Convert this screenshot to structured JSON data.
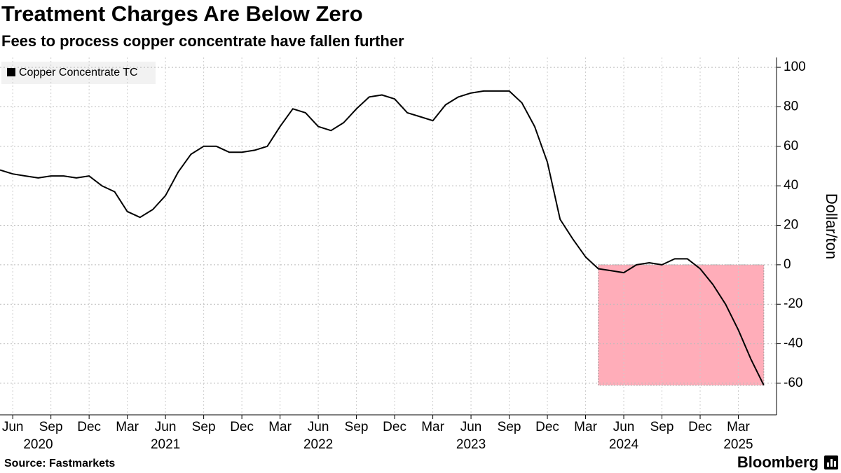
{
  "chart_data": {
    "type": "line",
    "title": "Treatment Charges Are Below Zero",
    "subtitle": "Fees to process copper concentrate have fallen further",
    "y_label": "Dollar/ton",
    "source": "Source: Fastmarkets",
    "brand": "Bloomberg",
    "legend": "top-left",
    "grid": true,
    "x": [
      "2020-05",
      "2020-06",
      "2020-07",
      "2020-08",
      "2020-09",
      "2020-10",
      "2020-11",
      "2020-12",
      "2021-01",
      "2021-02",
      "2021-03",
      "2021-04",
      "2021-05",
      "2021-06",
      "2021-07",
      "2021-08",
      "2021-09",
      "2021-10",
      "2021-11",
      "2021-12",
      "2022-01",
      "2022-02",
      "2022-03",
      "2022-04",
      "2022-05",
      "2022-06",
      "2022-07",
      "2022-08",
      "2022-09",
      "2022-10",
      "2022-11",
      "2022-12",
      "2023-01",
      "2023-02",
      "2023-03",
      "2023-04",
      "2023-05",
      "2023-06",
      "2023-07",
      "2023-08",
      "2023-09",
      "2023-10",
      "2023-11",
      "2023-12",
      "2024-01",
      "2024-02",
      "2024-03",
      "2024-04",
      "2024-05",
      "2024-06",
      "2024-07",
      "2024-08",
      "2024-09",
      "2024-10",
      "2024-11",
      "2024-12",
      "2025-01",
      "2025-02",
      "2025-03",
      "2025-04",
      "2025-05"
    ],
    "series": [
      {
        "name": "Copper Concentrate TC",
        "color": "#000000",
        "values": [
          48,
          46,
          45,
          44,
          45,
          45,
          44,
          45,
          40,
          37,
          27,
          24,
          28,
          35,
          47,
          56,
          60,
          60,
          57,
          57,
          58,
          60,
          70,
          79,
          77,
          70,
          68,
          72,
          79,
          85,
          86,
          84,
          77,
          75,
          73,
          81,
          85,
          87,
          88,
          88,
          88,
          82,
          70,
          52,
          23,
          13,
          4,
          -2,
          -3,
          -4,
          0,
          1,
          0,
          3,
          3,
          -2,
          -10,
          -20,
          -33,
          -48,
          -61
        ]
      }
    ],
    "highlight": {
      "x": [
        "2024-04",
        "2025-05"
      ],
      "y": [
        0,
        -61
      ],
      "color": "#ffadb9"
    },
    "xlim": [
      "2020-05",
      "2025-06"
    ],
    "ylim": [
      -76,
      105
    ],
    "yticks": [
      -60,
      -40,
      -20,
      0,
      20,
      40,
      60,
      80,
      100
    ],
    "xticks": [
      {
        "value": "2020-06",
        "label": "Jun"
      },
      {
        "value": "2020-09",
        "label": "Sep"
      },
      {
        "value": "2020-12",
        "label": "Dec"
      },
      {
        "value": "2021-03",
        "label": "Mar"
      },
      {
        "value": "2021-06",
        "label": "Jun"
      },
      {
        "value": "2021-09",
        "label": "Sep"
      },
      {
        "value": "2021-12",
        "label": "Dec"
      },
      {
        "value": "2022-03",
        "label": "Mar"
      },
      {
        "value": "2022-06",
        "label": "Jun"
      },
      {
        "value": "2022-09",
        "label": "Sep"
      },
      {
        "value": "2022-12",
        "label": "Dec"
      },
      {
        "value": "2023-03",
        "label": "Mar"
      },
      {
        "value": "2023-06",
        "label": "Jun"
      },
      {
        "value": "2023-09",
        "label": "Sep"
      },
      {
        "value": "2023-12",
        "label": "Dec"
      },
      {
        "value": "2024-03",
        "label": "Mar"
      },
      {
        "value": "2024-06",
        "label": "Jun"
      },
      {
        "value": "2024-09",
        "label": "Sep"
      },
      {
        "value": "2024-12",
        "label": "Dec"
      },
      {
        "value": "2025-03",
        "label": "Mar"
      }
    ],
    "year_ticks": [
      {
        "value": "2020-08",
        "label": "2020"
      },
      {
        "value": "2021-06",
        "label": "2021"
      },
      {
        "value": "2022-06",
        "label": "2022"
      },
      {
        "value": "2023-06",
        "label": "2023"
      },
      {
        "value": "2024-06",
        "label": "2024"
      },
      {
        "value": "2025-03",
        "label": "2025"
      }
    ]
  }
}
